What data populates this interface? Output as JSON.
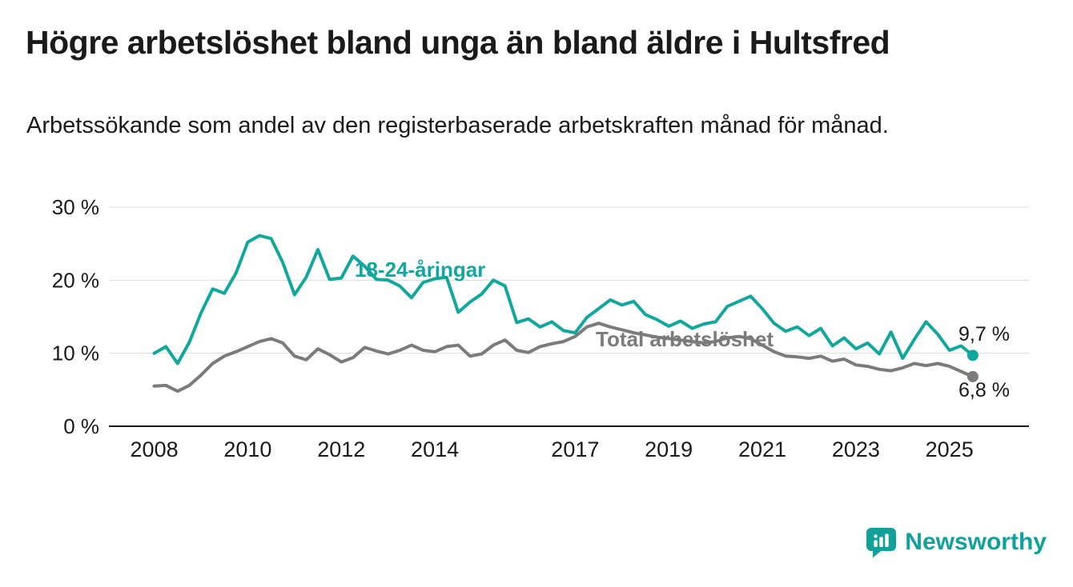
{
  "title": "Högre arbetslöshet bland unga än bland äldre i Hultsfred",
  "subtitle": "Arbetssökande som andel av den registerbaserade arbetskraften månad för månad.",
  "branding": {
    "name": "Newsworthy",
    "icon": "bar-chart-speech-bubble-icon",
    "color": "#12A09A"
  },
  "colors": {
    "accent_teal": "#12A79D",
    "series_gray": "#7B7B7B",
    "grid": "#DCDCDC",
    "axis": "#1A1A1A",
    "text": "#1A1A1A"
  },
  "chart_data": {
    "type": "line",
    "title": "Högre arbetslöshet bland unga än bland äldre i Hultsfred",
    "subtitle": "Arbetssökande som andel av den registerbaserade arbetskraften månad för månad.",
    "unit": "%",
    "xlim": [
      2007.1,
      2026.7
    ],
    "ylim": [
      0,
      30
    ],
    "grid": "horizontal",
    "legend_position": "inline-labels",
    "x_ticks": [
      2008,
      2010,
      2012,
      2014,
      2017,
      2019,
      2021,
      2023,
      2025
    ],
    "y_ticks": [
      {
        "value": 0,
        "label": "0 %"
      },
      {
        "value": 10,
        "label": "10 %"
      },
      {
        "value": 20,
        "label": "20 %"
      },
      {
        "value": 30,
        "label": "30 %"
      }
    ],
    "series": [
      {
        "name": "18-24-åringar",
        "color": "#12A79D",
        "end_label": "9,7 %",
        "end_value": 9.7,
        "x_start": 2008,
        "x_step": 0.25,
        "values": [
          10.0,
          10.9,
          8.6,
          11.5,
          15.5,
          18.8,
          18.2,
          21.0,
          25.2,
          26.1,
          25.7,
          22.4,
          18.0,
          20.4,
          24.2,
          20.1,
          20.3,
          23.3,
          21.9,
          20.1,
          20.0,
          19.2,
          17.6,
          19.7,
          20.2,
          20.4,
          15.6,
          17.0,
          18.1,
          20.0,
          19.2,
          14.2,
          14.7,
          13.6,
          14.3,
          13.1,
          12.8,
          14.9,
          16.1,
          17.3,
          16.6,
          17.1,
          15.3,
          14.6,
          13.7,
          14.4,
          13.4,
          14.0,
          14.3,
          16.4,
          17.1,
          17.8,
          16.1,
          14.1,
          13.0,
          13.6,
          12.4,
          13.4,
          11.0,
          12.1,
          10.6,
          11.4,
          9.9,
          12.9,
          9.3,
          11.9,
          14.3,
          12.6,
          10.4,
          11.0,
          9.7
        ]
      },
      {
        "name": "Total arbetslöshet",
        "color": "#7B7B7B",
        "end_label": "6,8 %",
        "end_value": 6.8,
        "x_start": 2008,
        "x_step": 0.25,
        "values": [
          5.5,
          5.6,
          4.8,
          5.6,
          7.0,
          8.6,
          9.6,
          10.2,
          10.9,
          11.6,
          12.0,
          11.4,
          9.6,
          9.1,
          10.6,
          9.8,
          8.8,
          9.4,
          10.8,
          10.3,
          9.9,
          10.4,
          11.1,
          10.4,
          10.2,
          10.9,
          11.1,
          9.6,
          9.9,
          11.1,
          11.8,
          10.4,
          10.1,
          10.9,
          11.3,
          11.6,
          12.3,
          13.6,
          14.1,
          13.6,
          13.2,
          12.8,
          12.5,
          12.2,
          12.0,
          11.8,
          11.6,
          11.4,
          11.6,
          12.1,
          12.3,
          12.0,
          11.1,
          10.2,
          9.6,
          9.5,
          9.3,
          9.6,
          8.9,
          9.2,
          8.4,
          8.2,
          7.8,
          7.6,
          8.0,
          8.6,
          8.3,
          8.6,
          8.2,
          7.5,
          6.8
        ]
      }
    ]
  }
}
